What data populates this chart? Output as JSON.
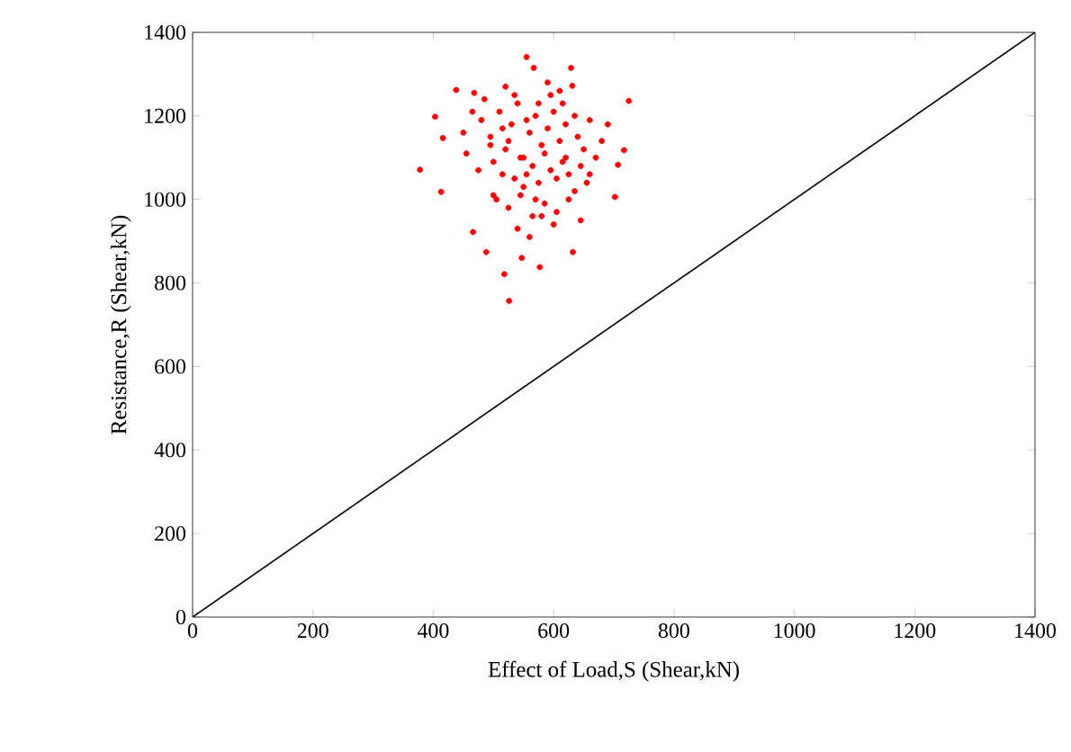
{
  "chart_data": {
    "type": "scatter",
    "xlabel": "Effect of Load,S (Shear,kN)",
    "ylabel": "Resistance,R (Shear,kN)",
    "xlim": [
      0,
      1400
    ],
    "ylim": [
      0,
      1400
    ],
    "xticks": [
      0,
      200,
      400,
      600,
      800,
      1000,
      1200,
      1400
    ],
    "yticks": [
      0,
      200,
      400,
      600,
      800,
      1000,
      1200,
      1400
    ],
    "grid": false,
    "series": [
      {
        "color": "#ff0000",
        "marker": "circle",
        "x": [
          555,
          567,
          629,
          631,
          725,
          438,
          468,
          403,
          416,
          378,
          413,
          717,
          707,
          702,
          488,
          466,
          632,
          577,
          518,
          526,
          547,
          480,
          495,
          510,
          520,
          530,
          540,
          550,
          560,
          570,
          580,
          590,
          600,
          610,
          620,
          640,
          650,
          660,
          670,
          680,
          455,
          465,
          475,
          485,
          500,
          515,
          525,
          535,
          545,
          555,
          565,
          575,
          585,
          595,
          605,
          615,
          625,
          635,
          645,
          655,
          505,
          525,
          545,
          565,
          585,
          605,
          625,
          645,
          495,
          515,
          535,
          555,
          575,
          595,
          615,
          635,
          540,
          560,
          580,
          600,
          520,
          590,
          610,
          570,
          550,
          450,
          690,
          660,
          500,
          620
        ],
        "values": [
          1341,
          1315,
          1315,
          1272,
          1236,
          1262,
          1255,
          1198,
          1147,
          1071,
          1018,
          1118,
          1083,
          1006,
          874,
          922,
          874,
          838,
          821,
          757,
          860,
          1190,
          1150,
          1210,
          1120,
          1180,
          1230,
          1100,
          1160,
          1200,
          1130,
          1170,
          1210,
          1140,
          1180,
          1150,
          1120,
          1190,
          1100,
          1140,
          1110,
          1210,
          1070,
          1240,
          1090,
          1060,
          1140,
          1050,
          1100,
          1060,
          1080,
          1040,
          1110,
          1070,
          1050,
          1090,
          1060,
          1020,
          1080,
          1040,
          1000,
          980,
          1010,
          960,
          990,
          970,
          1000,
          950,
          1130,
          1170,
          1250,
          1190,
          1230,
          1250,
          1230,
          1200,
          930,
          910,
          960,
          940,
          1270,
          1280,
          1260,
          1000,
          1030,
          1160,
          1180,
          1060,
          1010,
          1100
        ]
      },
      {
        "type": "line",
        "marker": "none",
        "color": "#000000",
        "x": [
          0,
          1400
        ],
        "values": [
          0,
          1400
        ]
      }
    ]
  }
}
